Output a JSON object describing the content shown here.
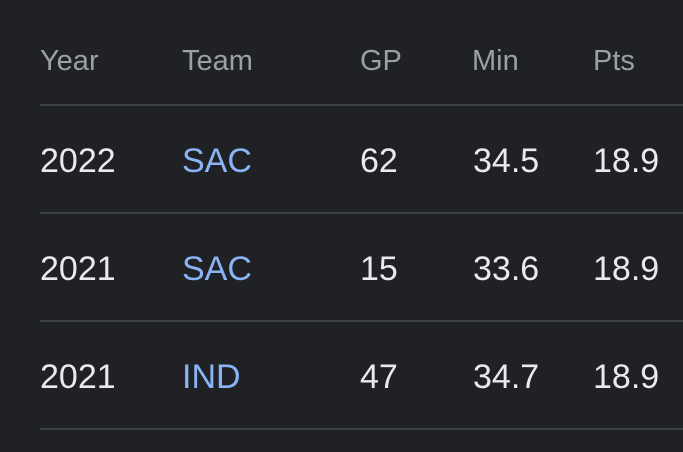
{
  "table": {
    "headers": {
      "year": "Year",
      "team": "Team",
      "gp": "GP",
      "min": "Min",
      "pts": "Pts"
    },
    "rows": [
      {
        "year": "2022",
        "team": "SAC",
        "gp": "62",
        "min": "34.5",
        "pts": "18.9"
      },
      {
        "year": "2021",
        "team": "SAC",
        "gp": "15",
        "min": "33.6",
        "pts": "18.9"
      },
      {
        "year": "2021",
        "team": "IND",
        "gp": "47",
        "min": "34.7",
        "pts": "18.9"
      }
    ]
  },
  "colors": {
    "background": "#202124",
    "header_text": "#9aa0a6",
    "cell_text": "#e8eaed",
    "link_text": "#8ab4f8",
    "divider": "#3c4043"
  }
}
